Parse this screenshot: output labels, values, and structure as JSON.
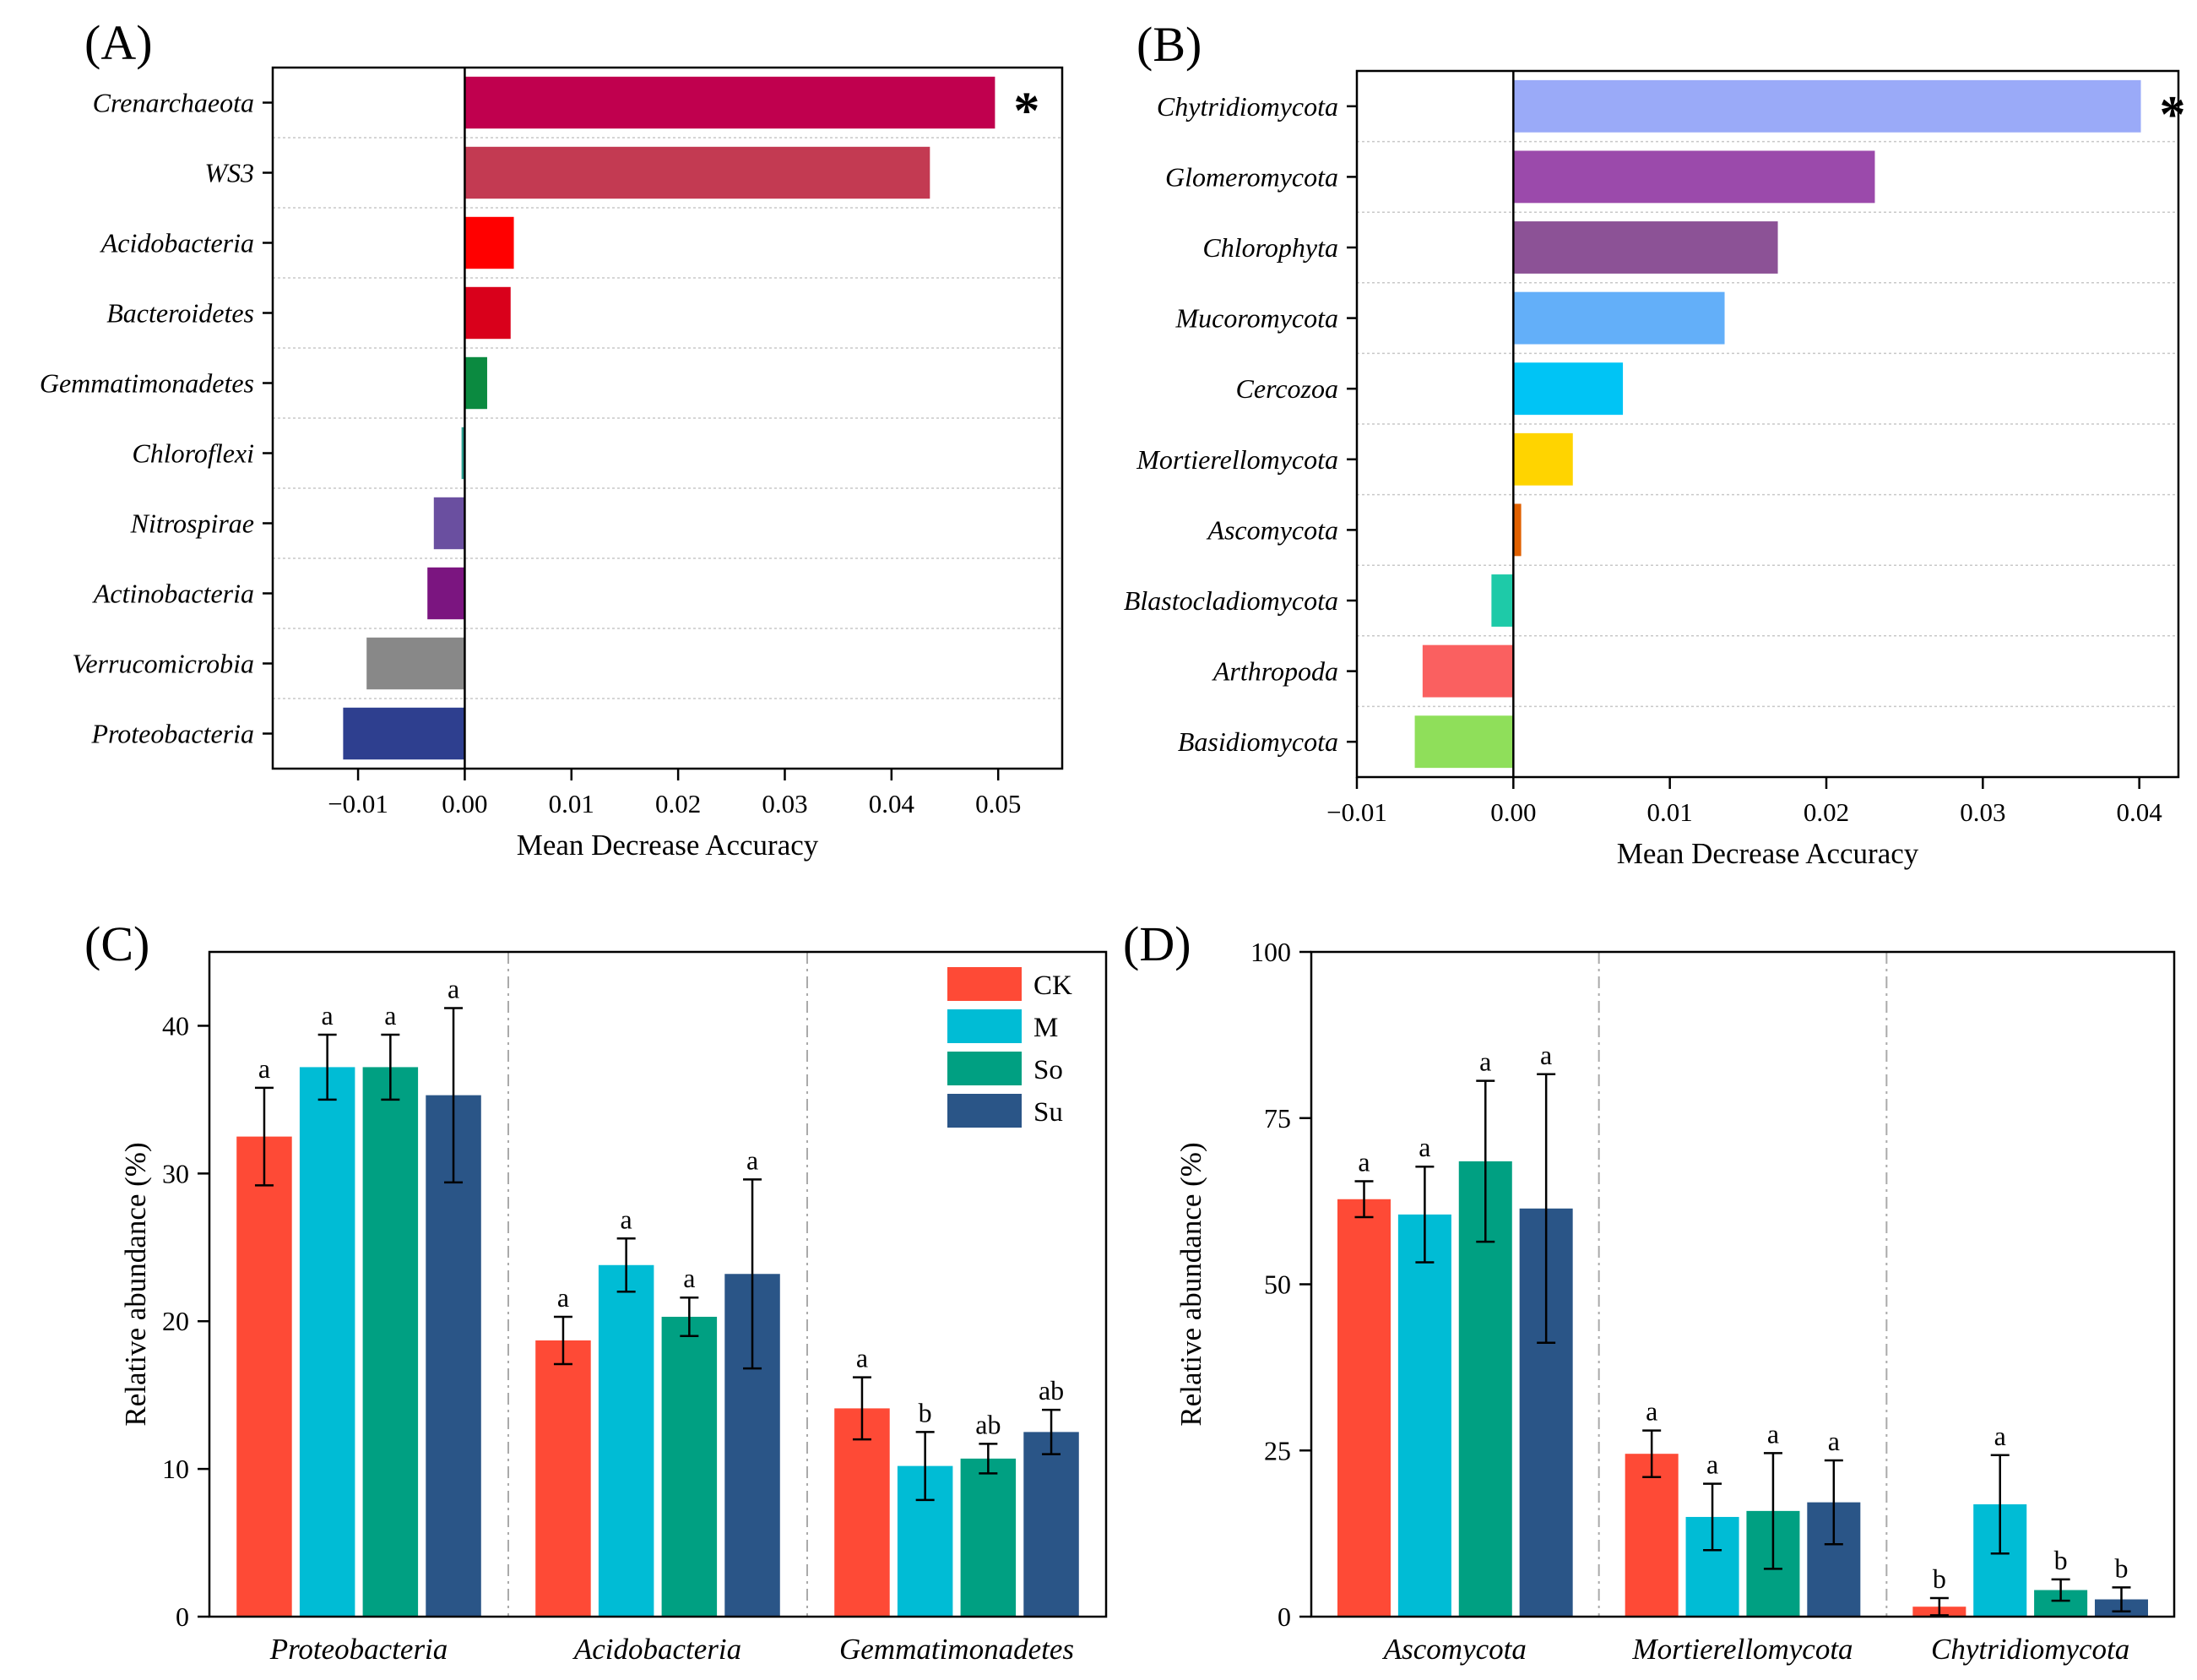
{
  "chart_data": [
    {
      "id": "A",
      "panel_label": "(A)",
      "type": "bar",
      "orientation": "horizontal",
      "xlabel": "Mean Decrease Accuracy",
      "xlim": [
        -0.018,
        0.056
      ],
      "xticks": [
        -0.01,
        0.0,
        0.01,
        0.02,
        0.03,
        0.04,
        0.05
      ],
      "xtick_labels": [
        "−0.01",
        "0.00",
        "0.01",
        "0.02",
        "0.03",
        "0.04",
        "0.05"
      ],
      "significance_marker": "*",
      "categories": [
        "Crenarchaeota",
        "WS3",
        "Acidobacteria",
        "Bacteroidetes",
        "Gemmatimonadetes",
        "Chloroflexi",
        "Nitrospirae",
        "Actinobacteria",
        "Verrucomicrobia",
        "Proteobacteria"
      ],
      "values": [
        0.0497,
        0.0436,
        0.0046,
        0.0043,
        0.0021,
        -0.0003,
        -0.0029,
        -0.0035,
        -0.0092,
        -0.0114
      ],
      "colors": [
        "#c0004e",
        "#c33a52",
        "#ff0000",
        "#d9001b",
        "#0b8a40",
        "#2a9d8f",
        "#6a4fa0",
        "#7b1580",
        "#888888",
        "#2e3f8f"
      ],
      "significant": [
        true,
        false,
        false,
        false,
        false,
        false,
        false,
        false,
        false,
        false
      ]
    },
    {
      "id": "B",
      "panel_label": "(B)",
      "type": "bar",
      "orientation": "horizontal",
      "xlabel": "Mean Decrease Accuracy",
      "xlim": [
        -0.01,
        0.0425
      ],
      "xticks": [
        -0.01,
        0.0,
        0.01,
        0.02,
        0.03,
        0.04
      ],
      "xtick_labels": [
        "−0.01",
        "0.00",
        "0.01",
        "0.02",
        "0.03",
        "0.04"
      ],
      "significance_marker": "*",
      "categories": [
        "Chytridiomycota",
        "Glomeromycota",
        "Chlorophyta",
        "Mucoromycota",
        "Cercozoa",
        "Mortierellomycota",
        "Ascomycota",
        "Blastocladiomycota",
        "Arthropoda",
        "Basidiomycota"
      ],
      "values": [
        0.0401,
        0.0231,
        0.0169,
        0.0135,
        0.007,
        0.0038,
        0.0005,
        -0.0014,
        -0.0058,
        -0.0063
      ],
      "colors": [
        "#9aaaf8",
        "#9b4aab",
        "#8c5296",
        "#63aff9",
        "#00c4f5",
        "#ffd400",
        "#e06000",
        "#1ecaa8",
        "#fa6060",
        "#8fdf5a"
      ],
      "significant": [
        true,
        false,
        false,
        false,
        false,
        false,
        false,
        false,
        false,
        false
      ]
    },
    {
      "id": "C",
      "panel_label": "(C)",
      "type": "bar",
      "orientation": "vertical",
      "ylabel": "Relative abundance (%)",
      "ylim": [
        0,
        45
      ],
      "yticks": [
        0,
        10,
        20,
        30,
        40
      ],
      "categories": [
        "Proteobacteria",
        "Acidobacteria",
        "Gemmatimonadetes"
      ],
      "legend": {
        "placement": "top-right"
      },
      "series": [
        {
          "name": "CK",
          "color": "#fe4a36",
          "values": [
            32.5,
            18.7,
            14.1
          ],
          "errors": [
            3.3,
            1.6,
            2.1
          ],
          "letters": [
            "a",
            "a",
            "a"
          ]
        },
        {
          "name": "M",
          "color": "#00bcd5",
          "values": [
            37.2,
            23.8,
            10.2
          ],
          "errors": [
            2.2,
            1.8,
            2.3
          ],
          "letters": [
            "a",
            "a",
            "b"
          ]
        },
        {
          "name": "So",
          "color": "#00a082",
          "values": [
            37.2,
            20.3,
            10.7
          ],
          "errors": [
            2.2,
            1.3,
            1.0
          ],
          "letters": [
            "a",
            "a",
            "ab"
          ]
        },
        {
          "name": "Su",
          "color": "#2a5587",
          "values": [
            35.3,
            23.2,
            12.5
          ],
          "errors": [
            5.9,
            6.4,
            1.5
          ],
          "letters": [
            "a",
            "a",
            "ab"
          ]
        }
      ]
    },
    {
      "id": "D",
      "panel_label": "(D)",
      "type": "bar",
      "orientation": "vertical",
      "ylabel": "Relative abundance (%)",
      "ylim": [
        0,
        100
      ],
      "yticks": [
        0,
        25,
        50,
        75,
        100
      ],
      "categories": [
        "Ascomycota",
        "Mortierellomycota",
        "Chytridiomycota"
      ],
      "series": [
        {
          "name": "CK",
          "color": "#fe4a36",
          "values": [
            62.8,
            24.5,
            1.5
          ],
          "errors": [
            2.7,
            3.5,
            1.3
          ],
          "letters": [
            "a",
            "a",
            "b"
          ]
        },
        {
          "name": "M",
          "color": "#00bcd5",
          "values": [
            60.5,
            15.0,
            16.9
          ],
          "errors": [
            7.2,
            5.0,
            7.4
          ],
          "letters": [
            "a",
            "a",
            "a"
          ]
        },
        {
          "name": "So",
          "color": "#00a082",
          "values": [
            68.5,
            15.9,
            4.0
          ],
          "errors": [
            12.1,
            8.7,
            1.6
          ],
          "letters": [
            "a",
            "a",
            "b"
          ]
        },
        {
          "name": "Su",
          "color": "#2a5587",
          "values": [
            61.4,
            17.2,
            2.6
          ],
          "errors": [
            20.2,
            6.3,
            1.8
          ],
          "letters": [
            "a",
            "a",
            "b"
          ]
        }
      ]
    }
  ]
}
